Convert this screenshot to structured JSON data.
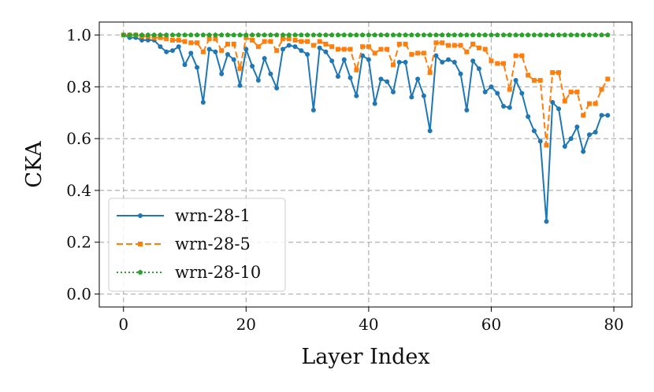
{
  "chart_data": {
    "type": "line",
    "xlabel": "Layer Index",
    "ylabel": "CKA",
    "x": [
      0,
      1,
      2,
      3,
      4,
      5,
      6,
      7,
      8,
      9,
      10,
      11,
      12,
      13,
      14,
      15,
      16,
      17,
      18,
      19,
      20,
      21,
      22,
      23,
      24,
      25,
      26,
      27,
      28,
      29,
      30,
      31,
      32,
      33,
      34,
      35,
      36,
      37,
      38,
      39,
      40,
      41,
      42,
      43,
      44,
      45,
      46,
      47,
      48,
      49,
      50,
      51,
      52,
      53,
      54,
      55,
      56,
      57,
      58,
      59,
      60,
      61,
      62,
      63,
      64,
      65,
      66,
      67,
      68,
      69,
      70,
      71,
      72,
      73,
      74,
      75,
      76,
      77,
      78,
      79
    ],
    "series": [
      {
        "name": "wrn-28-1",
        "color": "#1f77b4",
        "linestyle": "solid",
        "marker": "circle",
        "values": [
          1.0,
          0.99,
          0.99,
          0.98,
          0.98,
          0.98,
          0.955,
          0.935,
          0.94,
          0.955,
          0.885,
          0.93,
          0.875,
          0.74,
          0.945,
          0.935,
          0.85,
          0.925,
          0.905,
          0.805,
          0.945,
          0.88,
          0.825,
          0.91,
          0.85,
          0.795,
          0.945,
          0.96,
          0.955,
          0.94,
          0.925,
          0.71,
          0.95,
          0.935,
          0.9,
          0.84,
          0.905,
          0.835,
          0.765,
          0.92,
          0.905,
          0.735,
          0.83,
          0.82,
          0.78,
          0.895,
          0.895,
          0.76,
          0.83,
          0.765,
          0.63,
          0.92,
          0.895,
          0.905,
          0.895,
          0.85,
          0.71,
          0.9,
          0.87,
          0.78,
          0.8,
          0.775,
          0.725,
          0.72,
          0.825,
          0.775,
          0.685,
          0.63,
          0.59,
          0.28,
          0.74,
          0.715,
          0.57,
          0.6,
          0.645,
          0.55,
          0.615,
          0.625,
          0.69,
          0.69
        ]
      },
      {
        "name": "wrn-28-5",
        "color": "#ff7f0e",
        "linestyle": "dashed",
        "marker": "square",
        "values": [
          1.0,
          1.0,
          1.0,
          0.995,
          0.995,
          0.99,
          0.99,
          0.985,
          0.98,
          0.98,
          0.975,
          0.97,
          0.97,
          0.935,
          0.985,
          0.985,
          0.94,
          0.965,
          0.965,
          0.87,
          0.99,
          0.98,
          0.955,
          0.975,
          0.975,
          0.94,
          0.985,
          0.985,
          0.98,
          0.975,
          0.975,
          0.96,
          0.975,
          0.965,
          0.955,
          0.945,
          0.945,
          0.945,
          0.865,
          0.955,
          0.955,
          0.93,
          0.945,
          0.945,
          0.885,
          0.965,
          0.965,
          0.925,
          0.93,
          0.93,
          0.855,
          0.97,
          0.97,
          0.96,
          0.96,
          0.96,
          0.935,
          0.965,
          0.95,
          0.945,
          0.9,
          0.89,
          0.89,
          0.79,
          0.92,
          0.92,
          0.845,
          0.825,
          0.825,
          0.575,
          0.855,
          0.855,
          0.745,
          0.78,
          0.78,
          0.69,
          0.735,
          0.735,
          0.79,
          0.83
        ]
      },
      {
        "name": "wrn-28-10",
        "color": "#2ca02c",
        "linestyle": "dotted",
        "marker": "pentagon",
        "values": [
          1.0,
          1.0,
          1.0,
          1.0,
          1.0,
          1.0,
          1.0,
          1.0,
          1.0,
          1.0,
          1.0,
          1.0,
          1.0,
          1.0,
          1.0,
          1.0,
          1.0,
          1.0,
          1.0,
          1.0,
          1.0,
          1.0,
          1.0,
          1.0,
          1.0,
          1.0,
          1.0,
          1.0,
          1.0,
          1.0,
          1.0,
          1.0,
          1.0,
          1.0,
          1.0,
          1.0,
          1.0,
          1.0,
          1.0,
          1.0,
          1.0,
          1.0,
          1.0,
          1.0,
          1.0,
          1.0,
          1.0,
          1.0,
          1.0,
          1.0,
          1.0,
          1.0,
          1.0,
          1.0,
          1.0,
          1.0,
          1.0,
          1.0,
          1.0,
          1.0,
          1.0,
          1.0,
          1.0,
          1.0,
          1.0,
          1.0,
          1.0,
          1.0,
          1.0,
          1.0,
          1.0,
          1.0,
          1.0,
          1.0,
          1.0,
          1.0,
          1.0,
          1.0,
          1.0,
          1.0
        ]
      }
    ],
    "xlim": [
      -3.95,
      82.95
    ],
    "ylim": [
      -0.05,
      1.05
    ],
    "xticks": [
      0,
      20,
      40,
      60,
      80
    ],
    "yticks": [
      {
        "value": 0,
        "label": "0.0"
      },
      0.2,
      0.4,
      0.6,
      0.8,
      {
        "value": 1,
        "label": "1.0"
      }
    ],
    "grid": true,
    "legend": "lower left"
  }
}
